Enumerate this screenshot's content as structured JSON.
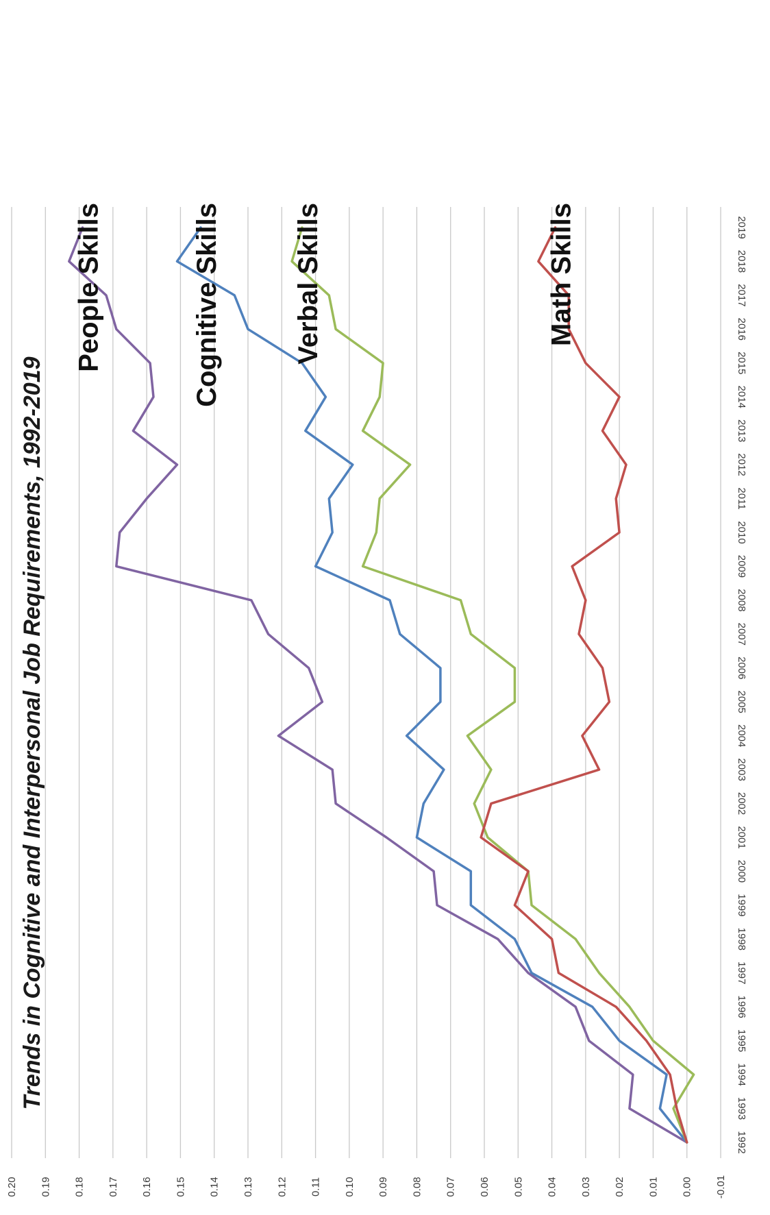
{
  "chart_data": {
    "type": "line",
    "title": "Trends in Cognitive and Interpersonal Job Requirements, 1992-2019",
    "xlabel": "",
    "ylabel": "",
    "orientation": "rotated 90 degrees clockwise",
    "x": [
      "1992",
      "1993",
      "1994",
      "1995",
      "1996",
      "1997",
      "1998",
      "1999",
      "2000",
      "2001",
      "2002",
      "2003",
      "2004",
      "2005",
      "2006",
      "2007",
      "2008",
      "2009",
      "2010",
      "2011",
      "2012",
      "2013",
      "2014",
      "2015",
      "2016",
      "2017",
      "2018",
      "2019"
    ],
    "ylim": [
      -0.01,
      0.2
    ],
    "yticks": [
      "-0.01",
      "0.00",
      "0.01",
      "0.02",
      "0.03",
      "0.04",
      "0.05",
      "0.06",
      "0.07",
      "0.08",
      "0.09",
      "0.10",
      "0.11",
      "0.12",
      "0.13",
      "0.14",
      "0.15",
      "0.16",
      "0.17",
      "0.18",
      "0.19",
      "0.20"
    ],
    "grid": true,
    "series": [
      {
        "name": "People Skills",
        "color": "#8064a2",
        "values": [
          0.0,
          0.017,
          0.016,
          0.029,
          0.033,
          0.047,
          0.056,
          0.074,
          0.075,
          0.089,
          0.104,
          0.105,
          0.121,
          0.108,
          0.112,
          0.124,
          0.129,
          0.169,
          0.168,
          0.16,
          0.151,
          0.164,
          0.158,
          0.159,
          0.169,
          0.172,
          0.183,
          0.179
        ]
      },
      {
        "name": "Cognitive Skills",
        "color": "#4f81bd",
        "values": [
          0.0,
          0.008,
          0.006,
          0.02,
          0.028,
          0.046,
          0.051,
          0.064,
          0.064,
          0.08,
          0.078,
          0.072,
          0.083,
          0.073,
          0.073,
          0.085,
          0.088,
          0.11,
          0.105,
          0.106,
          0.099,
          0.113,
          0.107,
          0.114,
          0.13,
          0.134,
          0.151,
          0.144
        ]
      },
      {
        "name": "Verbal Skills",
        "color": "#9bbb59",
        "values": [
          0.0,
          0.004,
          -0.002,
          0.01,
          0.017,
          0.026,
          0.033,
          0.046,
          0.047,
          0.059,
          0.063,
          0.058,
          0.065,
          0.051,
          0.051,
          0.064,
          0.067,
          0.096,
          0.092,
          0.091,
          0.082,
          0.096,
          0.091,
          0.09,
          0.104,
          0.106,
          0.117,
          0.114
        ]
      },
      {
        "name": "Math Skills",
        "color": "#c0504d",
        "values": [
          0.0,
          0.003,
          0.005,
          0.012,
          0.021,
          0.038,
          0.04,
          0.051,
          0.047,
          0.061,
          0.058,
          0.026,
          0.031,
          0.023,
          0.025,
          0.032,
          0.03,
          0.034,
          0.02,
          0.021,
          0.018,
          0.025,
          0.02,
          0.03,
          0.035,
          0.035,
          0.044,
          0.039
        ]
      }
    ]
  }
}
